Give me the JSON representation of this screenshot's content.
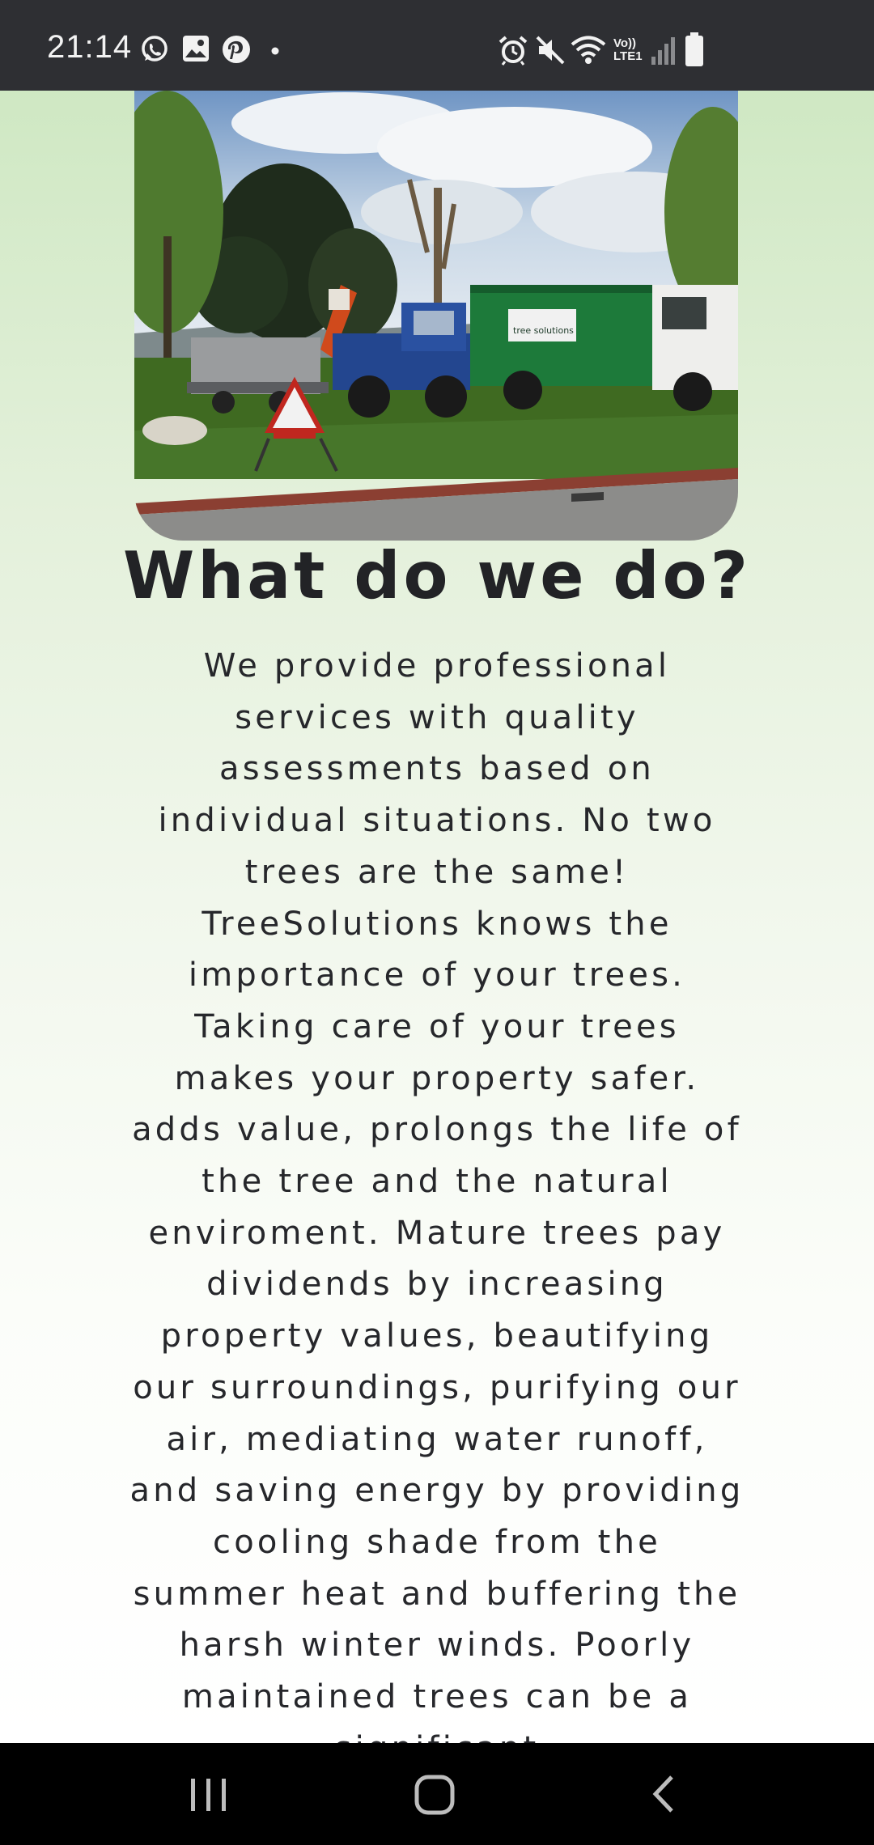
{
  "status_bar": {
    "time": "21:14",
    "left_icons": [
      "whatsapp-icon",
      "gallery-icon",
      "pinterest-icon",
      "dot-icon"
    ],
    "right_icons": [
      "alarm-icon",
      "mute-icon",
      "wifi-icon",
      "volte-icon",
      "signal-icon",
      "battery-icon"
    ],
    "volte_label_top": "Vo))",
    "volte_label_bottom": "LTE1"
  },
  "hero_image": {
    "truck_sign": "tree solutions"
  },
  "content": {
    "heading": "What do we do?",
    "paragraph": "We provide professional services with quality assessments based on individual situations. No two trees are the same! TreeSolutions knows the importance of your trees. Taking care of your trees makes your property safer. adds value, prolongs the life of the tree and the natural enviroment. Mature trees pay dividends by increasing property values, beautifying our surroundings, purifying our air, mediating water runoff, and saving energy by providing cooling shade from the summer heat and buffering the harsh winter winds. Poorly maintained trees can be a significant"
  },
  "nav_bar": {
    "buttons": [
      "recent-apps-icon",
      "home-icon",
      "back-icon"
    ]
  },
  "colors": {
    "status_bar_bg": "#2e2f33",
    "nav_bar_bg": "#000000",
    "text": "#222326",
    "background_top": "#cfe8c3",
    "background_bottom": "#ffffff"
  }
}
